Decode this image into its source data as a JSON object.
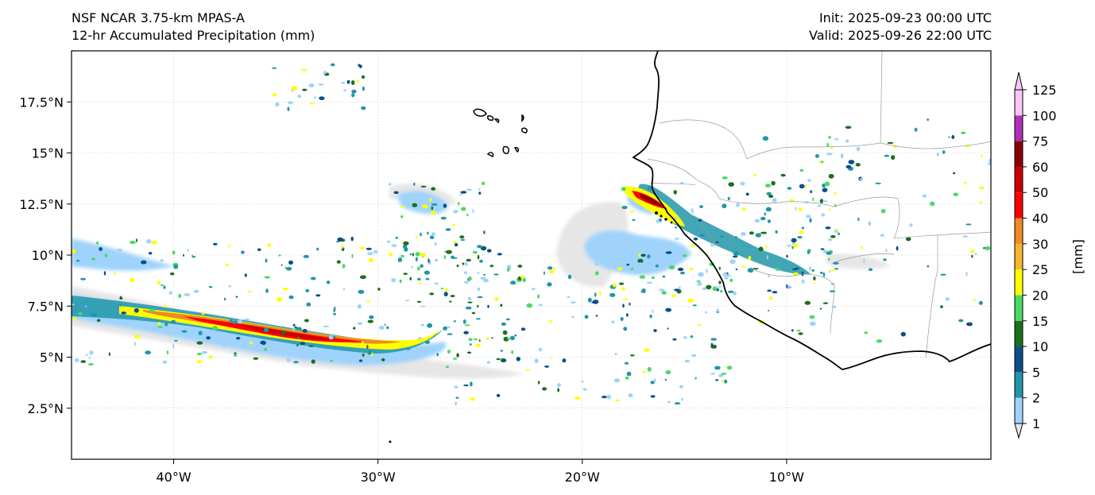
{
  "header": {
    "title_line1": "NSF NCAR 3.75-km MPAS-A",
    "title_line2": "12-hr Accumulated Precipitation (mm)",
    "init": "Init: 2025-09-23 00:00 UTC",
    "valid": "Valid: 2025-09-26 22:00 UTC"
  },
  "map": {
    "lon_range": [
      -45,
      0
    ],
    "lat_range": [
      0,
      20
    ],
    "lon_ticks": [
      {
        "value": -40,
        "label": "40°W"
      },
      {
        "value": -30,
        "label": "30°W"
      },
      {
        "value": -20,
        "label": "20°W"
      },
      {
        "value": -10,
        "label": "10°W"
      }
    ],
    "lat_ticks": [
      {
        "value": 17.5,
        "label": "17.5°N"
      },
      {
        "value": 15,
        "label": "15°N"
      },
      {
        "value": 12.5,
        "label": "12.5°N"
      },
      {
        "value": 10,
        "label": "10°N"
      },
      {
        "value": 7.5,
        "label": "7.5°N"
      },
      {
        "value": 5,
        "label": "5°N"
      },
      {
        "value": 2.5,
        "label": "2.5°N"
      }
    ],
    "gridlines": true
  },
  "colorbar": {
    "unit_label": "[mm]",
    "levels": [
      "1",
      "2",
      "5",
      "10",
      "15",
      "20",
      "25",
      "30",
      "40",
      "50",
      "60",
      "75",
      "100",
      "125"
    ],
    "colors": [
      "#e6e6e6",
      "#9fd3fb",
      "#2196a9",
      "#0b4f8a",
      "#1c6f1c",
      "#4cd964",
      "#ffff00",
      "#f5b52e",
      "#ef8a22",
      "#ff0000",
      "#cc0000",
      "#8b0000",
      "#b12fb5",
      "#f7c6f7"
    ],
    "extend": "both"
  }
}
